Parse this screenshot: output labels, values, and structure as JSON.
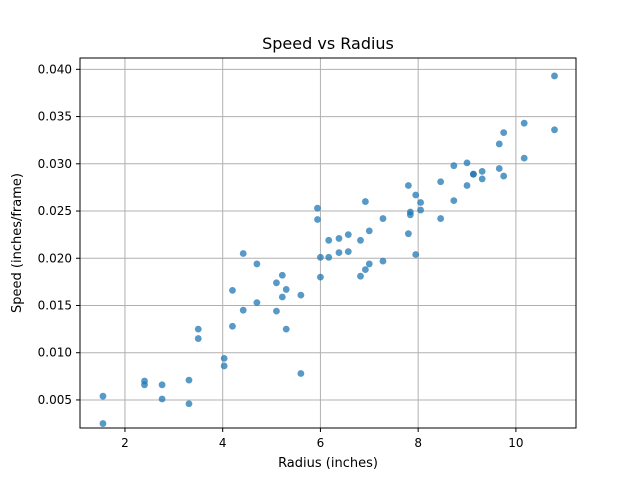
{
  "chart_data": {
    "type": "scatter",
    "title": "Speed vs Radius",
    "xlabel": "Radius (inches)",
    "ylabel": "Speed (inches/frame)",
    "xlim": [
      1.08,
      11.23
    ],
    "ylim": [
      0.00203,
      0.0412
    ],
    "xticks": [
      2,
      4,
      6,
      8,
      10
    ],
    "yticks": [
      0.005,
      0.01,
      0.015,
      0.02,
      0.025,
      0.03,
      0.035,
      0.04
    ],
    "xtick_labels": [
      "2",
      "4",
      "6",
      "8",
      "10"
    ],
    "ytick_labels": [
      "0.005",
      "0.010",
      "0.015",
      "0.020",
      "0.025",
      "0.030",
      "0.035",
      "0.040"
    ],
    "grid": true,
    "color": "#1f77b4",
    "points": [
      [
        1.55,
        0.0054
      ],
      [
        1.55,
        0.0025
      ],
      [
        2.4,
        0.007
      ],
      [
        2.4,
        0.0066
      ],
      [
        2.76,
        0.0066
      ],
      [
        2.76,
        0.0051
      ],
      [
        3.31,
        0.0071
      ],
      [
        3.31,
        0.0046
      ],
      [
        3.5,
        0.0125
      ],
      [
        3.5,
        0.0115
      ],
      [
        4.03,
        0.0094
      ],
      [
        4.03,
        0.0086
      ],
      [
        4.2,
        0.0166
      ],
      [
        4.2,
        0.0128
      ],
      [
        4.42,
        0.0205
      ],
      [
        4.42,
        0.0145
      ],
      [
        4.7,
        0.0194
      ],
      [
        4.7,
        0.0153
      ],
      [
        5.1,
        0.0174
      ],
      [
        5.1,
        0.0144
      ],
      [
        5.22,
        0.0182
      ],
      [
        5.22,
        0.0159
      ],
      [
        5.3,
        0.0167
      ],
      [
        5.3,
        0.0125
      ],
      [
        5.6,
        0.0161
      ],
      [
        5.6,
        0.0078
      ],
      [
        5.94,
        0.0253
      ],
      [
        5.94,
        0.0241
      ],
      [
        6.0,
        0.0201
      ],
      [
        6.0,
        0.018
      ],
      [
        6.17,
        0.0219
      ],
      [
        6.17,
        0.0201
      ],
      [
        6.38,
        0.0221
      ],
      [
        6.38,
        0.0206
      ],
      [
        6.57,
        0.0225
      ],
      [
        6.57,
        0.0207
      ],
      [
        6.82,
        0.0219
      ],
      [
        6.82,
        0.0181
      ],
      [
        6.92,
        0.026
      ],
      [
        6.92,
        0.0188
      ],
      [
        7.0,
        0.0229
      ],
      [
        7.0,
        0.0194
      ],
      [
        7.28,
        0.0242
      ],
      [
        7.28,
        0.0197
      ],
      [
        7.8,
        0.0277
      ],
      [
        7.8,
        0.0226
      ],
      [
        7.84,
        0.0249
      ],
      [
        7.84,
        0.0246
      ],
      [
        7.95,
        0.0267
      ],
      [
        7.95,
        0.0204
      ],
      [
        8.05,
        0.0259
      ],
      [
        8.05,
        0.0251
      ],
      [
        8.46,
        0.0281
      ],
      [
        8.46,
        0.0242
      ],
      [
        8.73,
        0.0298
      ],
      [
        8.73,
        0.0261
      ],
      [
        9.0,
        0.0301
      ],
      [
        9.0,
        0.0277
      ],
      [
        9.13,
        0.0289
      ],
      [
        9.13,
        0.0289
      ],
      [
        9.31,
        0.0292
      ],
      [
        9.31,
        0.0284
      ],
      [
        9.66,
        0.0321
      ],
      [
        9.66,
        0.0295
      ],
      [
        9.75,
        0.0333
      ],
      [
        9.75,
        0.0287
      ],
      [
        10.17,
        0.0343
      ],
      [
        10.17,
        0.0306
      ],
      [
        10.79,
        0.0393
      ],
      [
        10.79,
        0.0336
      ]
    ]
  }
}
